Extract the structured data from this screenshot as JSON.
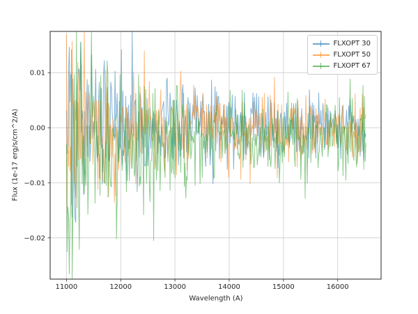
{
  "figure": {
    "background": "#ffffff"
  },
  "chart_data": {
    "type": "line",
    "subtype": "errorbar-noise-spectrum",
    "title": "",
    "xlabel": "Wavelength (A)",
    "ylabel": "Flux (1e-17 erg/s/cm^2/A)",
    "xlim": [
      10700,
      16800
    ],
    "ylim": [
      -0.0275,
      0.0175
    ],
    "x_ticks": [
      11000,
      12000,
      13000,
      14000,
      15000,
      16000
    ],
    "x_tick_labels": [
      "11000",
      "12000",
      "13000",
      "14000",
      "15000",
      "16000"
    ],
    "y_ticks": [
      0.01,
      0.0,
      -0.01,
      -0.02
    ],
    "y_tick_labels": [
      "0.01",
      "0.00",
      "−0.01",
      "−0.02"
    ],
    "grid": true,
    "grid_color": "#cccccc",
    "spine_color": "#262626",
    "tick_label_color": "#262626",
    "legend_position": "upper right",
    "x_start": 11000,
    "x_end": 16520,
    "n_points": 420,
    "series": [
      {
        "name": "FLXOPT 30",
        "color": "#1f77b4",
        "alpha": 0.55,
        "mean": 0.0004,
        "mean_extra": 0.001,
        "std_base": 0.0028,
        "std_extra": 0.0062,
        "decay_tau": 1400,
        "seed": 101,
        "peak_value": 0.016,
        "min_value": -0.012
      },
      {
        "name": "FLXOPT 50",
        "color": "#ff7f0e",
        "alpha": 0.55,
        "mean": -0.0004,
        "mean_extra": 0.0,
        "std_base": 0.0028,
        "std_extra": 0.006,
        "decay_tau": 1300,
        "seed": 202,
        "peak_value": 0.013,
        "min_value": -0.017
      },
      {
        "name": "FLXOPT 67",
        "color": "#2ca02c",
        "alpha": 0.55,
        "mean": -0.0016,
        "mean_extra": -0.003,
        "std_base": 0.003,
        "std_extra": 0.0095,
        "decay_tau": 1200,
        "seed": 303,
        "peak_value": 0.009,
        "min_value": -0.027
      }
    ]
  }
}
